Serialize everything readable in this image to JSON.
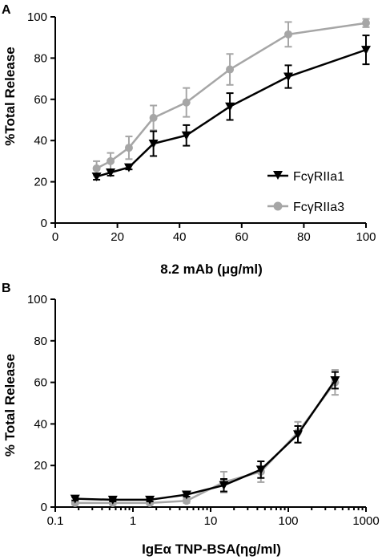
{
  "chart_data": [
    {
      "panel_label": "A",
      "type": "line",
      "xlabel": "8.2 mAb (μg/ml)",
      "ylabel": "%Total Release",
      "xlim": [
        0,
        100
      ],
      "ylim": [
        0,
        100
      ],
      "xscale": "linear",
      "xticks": [
        0,
        20,
        40,
        60,
        80,
        100
      ],
      "yticks": [
        0,
        20,
        40,
        60,
        80,
        100
      ],
      "legend_position": "bottom-right",
      "series": [
        {
          "name": "FcγRIIa1",
          "color": "#000000",
          "marker": "triangle-down",
          "x": [
            13.3,
            17.8,
            23.7,
            31.6,
            42.2,
            56.2,
            75,
            100
          ],
          "y": [
            22.5,
            24.5,
            27,
            38.5,
            42.5,
            56.5,
            71,
            84
          ],
          "err": [
            1.5,
            1.5,
            1,
            6,
            5,
            6.5,
            5.5,
            7
          ]
        },
        {
          "name": "FcγRIIa3",
          "color": "#a6a6a6",
          "marker": "circle",
          "x": [
            13.3,
            17.8,
            23.7,
            31.6,
            42.2,
            56.2,
            75,
            100
          ],
          "y": [
            26.5,
            30,
            36.5,
            51,
            58.5,
            74.5,
            91.5,
            97
          ],
          "err": [
            3.5,
            4,
            5.5,
            6,
            7,
            7.5,
            6,
            2
          ]
        }
      ]
    },
    {
      "panel_label": "B",
      "type": "line",
      "xlabel": "IgEα TNP-BSA(ηg/ml)",
      "ylabel": "% Total Release",
      "xlim": [
        0.1,
        1000
      ],
      "ylim": [
        0,
        100
      ],
      "xscale": "log",
      "xticks": [
        0.1,
        1,
        10,
        100,
        1000
      ],
      "xtick_labels": [
        "0.1",
        "1",
        "10",
        "100",
        "1000"
      ],
      "yticks": [
        0,
        20,
        40,
        60,
        80,
        100
      ],
      "series": [
        {
          "name": "FcγRIIa1",
          "color": "#000000",
          "marker": "triangle-down",
          "x": [
            0.18,
            0.55,
            1.65,
            4.9,
            14.8,
            44.4,
            133,
            400
          ],
          "y": [
            4,
            3.5,
            3.5,
            6,
            10.5,
            18,
            35,
            61
          ],
          "err": [
            0.8,
            0.8,
            0.8,
            1,
            3,
            4,
            4,
            4
          ]
        },
        {
          "name": "FcγRIIa3",
          "color": "#a6a6a6",
          "marker": "circle",
          "x": [
            0.18,
            0.55,
            1.65,
            4.9,
            14.8,
            44.4,
            133,
            400
          ],
          "y": [
            2,
            2,
            2,
            3,
            12,
            17,
            36,
            60
          ],
          "err": [
            0.8,
            0.8,
            0.8,
            1,
            5,
            5,
            5,
            6
          ]
        }
      ]
    }
  ]
}
